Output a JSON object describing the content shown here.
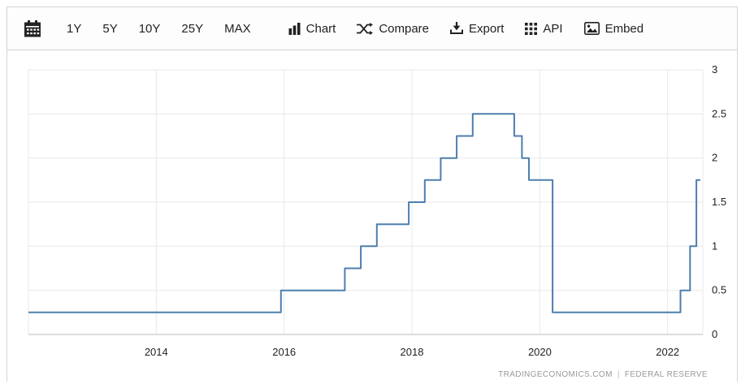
{
  "toolbar": {
    "calendar_button": {
      "icon": "calendar-icon"
    },
    "range_buttons": [
      {
        "label": "1Y"
      },
      {
        "label": "5Y"
      },
      {
        "label": "10Y"
      },
      {
        "label": "25Y"
      },
      {
        "label": "MAX"
      }
    ],
    "action_buttons": [
      {
        "label": "Chart",
        "icon": "bar-chart-icon"
      },
      {
        "label": "Compare",
        "icon": "compare-arrows-icon"
      },
      {
        "label": "Export",
        "icon": "download-icon"
      },
      {
        "label": "API",
        "icon": "grid-icon"
      },
      {
        "label": "Embed",
        "icon": "image-icon"
      }
    ]
  },
  "chart_data": {
    "type": "line",
    "subtype": "step",
    "title": "",
    "xlabel": "",
    "ylabel": "",
    "legend_position": "none",
    "grid": true,
    "x_ticks": [
      2014,
      2016,
      2018,
      2020,
      2022
    ],
    "y_ticks": [
      0,
      0.5,
      1,
      1.5,
      2,
      2.5,
      3
    ],
    "xlim": [
      2012.0,
      2022.55
    ],
    "ylim": [
      0,
      3
    ],
    "line_color": "#4d7eae",
    "grid_color": "#e8e8e8",
    "axis_color": "#bbbbbb",
    "series": [
      {
        "name": "",
        "points": [
          [
            2012.0,
            0.25
          ],
          [
            2015.95,
            0.5
          ],
          [
            2016.95,
            0.75
          ],
          [
            2017.2,
            1.0
          ],
          [
            2017.45,
            1.25
          ],
          [
            2017.95,
            1.5
          ],
          [
            2018.2,
            1.75
          ],
          [
            2018.45,
            2.0
          ],
          [
            2018.7,
            2.25
          ],
          [
            2018.95,
            2.5
          ],
          [
            2019.6,
            2.25
          ],
          [
            2019.72,
            2.0
          ],
          [
            2019.83,
            1.75
          ],
          [
            2020.2,
            0.25
          ],
          [
            2022.2,
            0.5
          ],
          [
            2022.35,
            1.0
          ],
          [
            2022.45,
            1.75
          ]
        ]
      }
    ]
  },
  "attribution": {
    "source": "TRADINGECONOMICS.COM",
    "separator": "|",
    "provider": "FEDERAL RESERVE"
  }
}
